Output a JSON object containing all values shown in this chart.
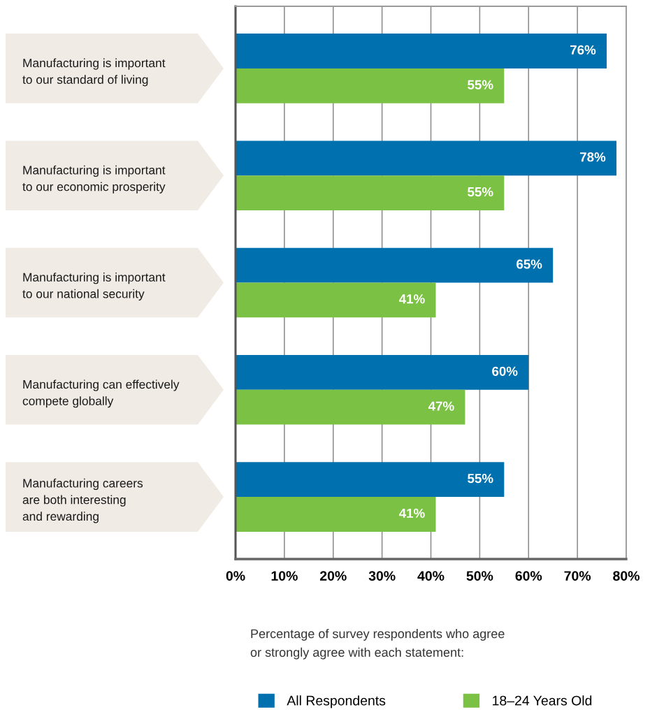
{
  "chart_data": {
    "type": "bar",
    "orientation": "horizontal",
    "categories": [
      "Manufacturing is important\nto our standard of living",
      "Manufacturing is important\nto our economic prosperity",
      "Manufacturing is important\nto our national security",
      "Manufacturing can effectively\ncompete globally",
      "Manufacturing careers\nare both interesting\nand rewarding"
    ],
    "series": [
      {
        "name": "All Respondents",
        "color": "#0071ae",
        "values": [
          76,
          78,
          65,
          60,
          55
        ],
        "value_labels": [
          "76%",
          "78%",
          "65%",
          "60%",
          "55%"
        ]
      },
      {
        "name": "18–24 Years Old",
        "color": "#7bc143",
        "values": [
          55,
          55,
          41,
          47,
          41
        ],
        "value_labels": [
          "55%",
          "55%",
          "41%",
          "47%",
          "41%"
        ]
      }
    ],
    "xlim": [
      0,
      80
    ],
    "xticks": [
      {
        "value": 0,
        "label": "0%"
      },
      {
        "value": 10,
        "label": "10%"
      },
      {
        "value": 20,
        "label": "20%"
      },
      {
        "value": 30,
        "label": "30%"
      },
      {
        "value": 40,
        "label": "40%"
      },
      {
        "value": 50,
        "label": "50%"
      },
      {
        "value": 60,
        "label": "60%"
      },
      {
        "value": 70,
        "label": "70%"
      },
      {
        "value": 80,
        "label": "80%"
      }
    ],
    "grid": "x",
    "legend": "bottom",
    "annotations": [
      "Percentage of survey respondents who agree\nor strongly agree with each statement:"
    ]
  }
}
